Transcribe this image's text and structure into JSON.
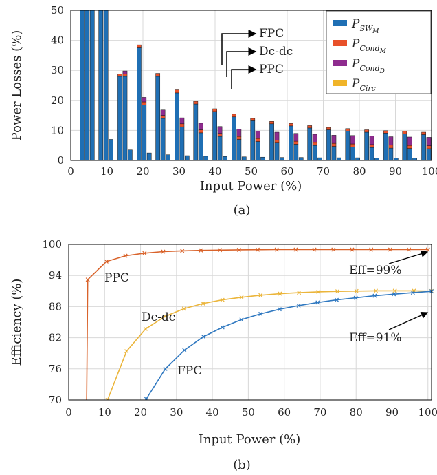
{
  "chart_data": [
    {
      "type": "bar",
      "stacked": true,
      "caption": "(a)",
      "xlabel": "Input Power (%)",
      "ylabel": "Power Losses (%)",
      "xlim": [
        0,
        100
      ],
      "ylim": [
        0,
        50
      ],
      "xticks": [
        "0",
        "10",
        "20",
        "30",
        "40",
        "50",
        "60",
        "70",
        "80",
        "90",
        "100"
      ],
      "yticks": [
        "0",
        "10",
        "20",
        "30",
        "40",
        "50"
      ],
      "grid": true,
      "legend_position": "top-right",
      "legend": [
        {
          "base": "P",
          "sub": "SW",
          "subsub": "M",
          "color": "#1f6fb4"
        },
        {
          "base": "P",
          "sub": "Cond",
          "subsub": "M",
          "color": "#e8512a"
        },
        {
          "base": "P",
          "sub": "Cond",
          "subsub": "D",
          "color": "#8e2b8e"
        },
        {
          "base": "P",
          "sub": "Circ",
          "subsub": "",
          "color": "#f0b429"
        }
      ],
      "groups": [
        "FPC",
        "Dc-dc",
        "PPC"
      ],
      "x": [
        5.3,
        10.5,
        15.8,
        21.1,
        26.3,
        31.6,
        36.8,
        42.1,
        47.4,
        52.6,
        57.9,
        63.2,
        68.4,
        73.7,
        78.9,
        84.2,
        89.5,
        94.7,
        100
      ],
      "series": [
        {
          "group": "FPC",
          "sw_m": [
            60,
            60,
            28,
            37.5,
            28,
            22.5,
            18.8,
            16.3,
            14.5,
            13.2,
            12.2,
            11.5,
            10.8,
            10.2,
            9.8,
            9.4,
            9.1,
            8.9,
            8.6
          ],
          "cond_m": [
            0.5,
            0.5,
            0.8,
            1.0,
            1.0,
            1.0,
            0.9,
            0.9,
            0.9,
            0.8,
            0.8,
            0.8,
            0.8,
            0.8,
            0.8,
            0.8,
            0.8,
            0.8,
            0.8
          ],
          "cond_d": [
            0,
            0,
            0,
            0,
            0,
            0,
            0,
            0,
            0,
            0,
            0,
            0,
            0,
            0,
            0,
            0,
            0,
            0,
            0
          ],
          "circ": [
            0,
            0,
            0,
            0,
            0,
            0,
            0,
            0,
            0,
            0,
            0,
            0,
            0,
            0,
            0,
            0,
            0,
            0,
            0
          ]
        },
        {
          "group": "Dc-dc",
          "sw_m": [
            60,
            60,
            28,
            18.5,
            14,
            11.2,
            9.2,
            8.0,
            7.0,
            6.3,
            5.8,
            5.4,
            5.0,
            4.7,
            4.5,
            4.3,
            4.1,
            4.0,
            3.9
          ],
          "cond_m": [
            0.5,
            0.5,
            0.8,
            1.0,
            1.0,
            1.0,
            1.0,
            1.0,
            1.0,
            1.0,
            1.0,
            1.0,
            1.0,
            1.0,
            1.0,
            1.0,
            1.0,
            1.0,
            1.0
          ],
          "cond_d": [
            0.5,
            0.5,
            1.0,
            1.5,
            1.8,
            2.0,
            2.2,
            2.3,
            2.4,
            2.5,
            2.6,
            2.6,
            2.7,
            2.7,
            2.8,
            2.8,
            2.8,
            2.8,
            2.8
          ],
          "circ": [
            0,
            0,
            0,
            0,
            0,
            0,
            0,
            0,
            0,
            0,
            0,
            0,
            0,
            0,
            0,
            0,
            0,
            0,
            0
          ]
        },
        {
          "group": "PPC",
          "sw_m": [
            60,
            7,
            3.5,
            2.5,
            1.9,
            1.6,
            1.4,
            1.3,
            1.2,
            1.1,
            1.0,
            1.0,
            0.9,
            0.9,
            0.9,
            0.8,
            0.8,
            0.8,
            0.8
          ],
          "cond_m": [
            0,
            0,
            0,
            0,
            0,
            0,
            0,
            0,
            0,
            0,
            0,
            0,
            0,
            0,
            0,
            0,
            0,
            0,
            0
          ],
          "cond_d": [
            0,
            0,
            0,
            0,
            0,
            0,
            0,
            0,
            0,
            0,
            0,
            0,
            0,
            0,
            0,
            0,
            0,
            0,
            0
          ],
          "circ": [
            0,
            0,
            0,
            0,
            0,
            0,
            0,
            0,
            0,
            0,
            0,
            0,
            0,
            0,
            0,
            0,
            0,
            0,
            0
          ]
        }
      ],
      "annotations": [
        "FPC",
        "Dc-dc",
        "PPC"
      ]
    },
    {
      "type": "line",
      "caption": "(b)",
      "xlabel": "Input Power (%)",
      "ylabel": "Efficiency (%)",
      "xlim": [
        0,
        101
      ],
      "ylim": [
        70,
        100
      ],
      "xticks": [
        "0",
        "10",
        "20",
        "30",
        "40",
        "50",
        "60",
        "70",
        "80",
        "90",
        "100"
      ],
      "yticks": [
        "70",
        "76",
        "82",
        "88",
        "94",
        "100"
      ],
      "grid": true,
      "series": [
        {
          "name": "PPC",
          "color": "#d9632b",
          "x": [
            5.3,
            10.5,
            15.8,
            21.1,
            26.3,
            31.6,
            36.8,
            42.1,
            47.4,
            52.6,
            57.9,
            63.2,
            68.4,
            73.7,
            78.9,
            84.2,
            89.5,
            94.7,
            100
          ],
          "y": [
            93.2,
            96.7,
            97.8,
            98.3,
            98.6,
            98.75,
            98.85,
            98.9,
            98.95,
            98.98,
            99.0,
            99.0,
            99.0,
            99.0,
            99.0,
            99.0,
            99.0,
            99.0,
            99.0
          ]
        },
        {
          "name": "Dc-dc",
          "color": "#ebb53b",
          "x": [
            10.8,
            16.1,
            21.4,
            26.8,
            32.1,
            37.4,
            42.8,
            48.1,
            53.4,
            58.8,
            64.1,
            69.5,
            74.8,
            80.1,
            85.5,
            90.8,
            96.1,
            101
          ],
          "y": [
            70.0,
            79.4,
            83.7,
            86.1,
            87.6,
            88.6,
            89.3,
            89.8,
            90.2,
            90.5,
            90.7,
            90.85,
            90.95,
            91.0,
            91.05,
            91.05,
            91.05,
            91.0
          ]
        },
        {
          "name": "FPC",
          "color": "#2f78c0",
          "x": [
            21.6,
            26.9,
            32.2,
            37.5,
            42.8,
            48.1,
            53.4,
            58.7,
            64.0,
            69.3,
            74.6,
            79.9,
            85.2,
            90.5,
            95.8,
            101
          ],
          "y": [
            70.2,
            76.0,
            79.6,
            82.2,
            84.0,
            85.5,
            86.6,
            87.5,
            88.2,
            88.8,
            89.3,
            89.7,
            90.1,
            90.4,
            90.7,
            90.95
          ]
        }
      ],
      "annotations": [
        "Eff=99%",
        "Eff=91%"
      ]
    }
  ]
}
